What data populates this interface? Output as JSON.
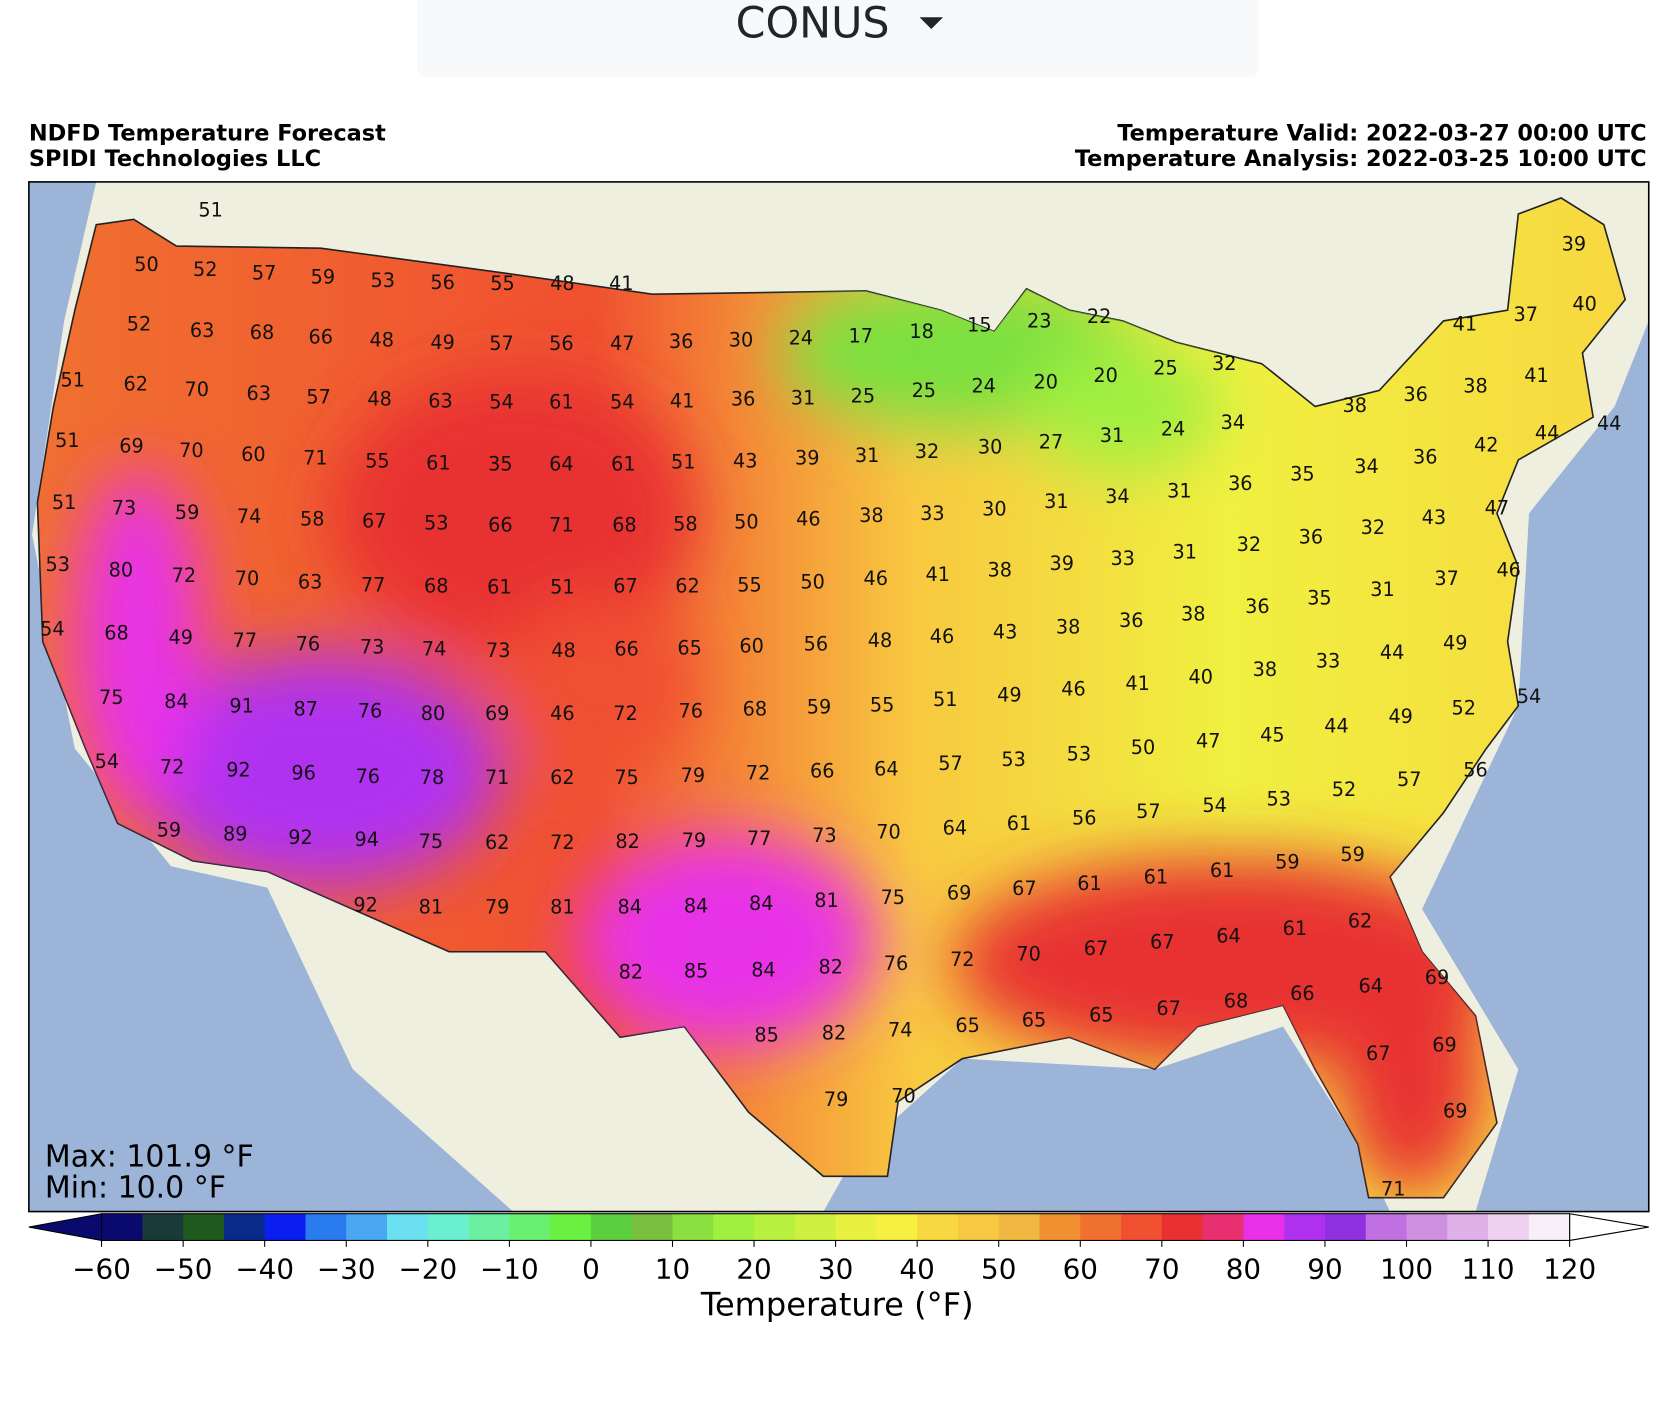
{
  "dropdown": {
    "label": "CONUS"
  },
  "map": {
    "title_left": [
      "NDFD Temperature Forecast",
      "SPIDI Technologies LLC"
    ],
    "title_right": [
      "Temperature Valid: 2022-03-27 00:00 UTC",
      "Temperature Analysis: 2022-03-25 10:00 UTC"
    ],
    "max_text": "Max: 101.9 °F",
    "min_text": "Min: 10.0 °F",
    "station_values": [
      51,
      50,
      52,
      57,
      59,
      53,
      56,
      55,
      48,
      41,
      52,
      63,
      68,
      66,
      48,
      49,
      57,
      56,
      47,
      36,
      30,
      24,
      17,
      18,
      15,
      23,
      22,
      39,
      41,
      37,
      40,
      51,
      62,
      70,
      63,
      57,
      48,
      63,
      54,
      61,
      54,
      41,
      36,
      31,
      25,
      25,
      24,
      20,
      20,
      25,
      32,
      38,
      36,
      38,
      41,
      51,
      69,
      70,
      60,
      71,
      55,
      61,
      35,
      64,
      61,
      51,
      43,
      39,
      31,
      32,
      30,
      27,
      31,
      24,
      34,
      34,
      36,
      42,
      44,
      44,
      51,
      73,
      59,
      74,
      58,
      67,
      53,
      66,
      71,
      68,
      58,
      50,
      46,
      38,
      33,
      30,
      31,
      34,
      31,
      36,
      35,
      36,
      32,
      43,
      47,
      53,
      80,
      72,
      70,
      63,
      77,
      68,
      61,
      51,
      67,
      62,
      55,
      50,
      46,
      41,
      38,
      39,
      33,
      31,
      32,
      35,
      31,
      37,
      46,
      54,
      68,
      49,
      77,
      76,
      73,
      74,
      73,
      48,
      66,
      65,
      60,
      56,
      48,
      46,
      43,
      38,
      36,
      38,
      36,
      33,
      44,
      49,
      75,
      84,
      91,
      87,
      76,
      80,
      69,
      46,
      72,
      76,
      68,
      59,
      55,
      51,
      49,
      46,
      41,
      40,
      38,
      52,
      54,
      54,
      72,
      92,
      96,
      76,
      78,
      71,
      62,
      75,
      79,
      72,
      66,
      64,
      57,
      53,
      53,
      50,
      47,
      45,
      44,
      49,
      59,
      89,
      92,
      94,
      75,
      62,
      72,
      82,
      79,
      77,
      73,
      70,
      64,
      61,
      56,
      57,
      54,
      53,
      52,
      57,
      56,
      92,
      81,
      79,
      81,
      84,
      84,
      84,
      81,
      75,
      69,
      67,
      61,
      61,
      61,
      59,
      59,
      82,
      85,
      84,
      82,
      76,
      72,
      70,
      67,
      67,
      64,
      61,
      62,
      69,
      85,
      82,
      74,
      65,
      65,
      65,
      67,
      68,
      66,
      64,
      69,
      79,
      70,
      67,
      69,
      71
    ],
    "colorbar": {
      "label": "Temperature (°F)",
      "xlim": [
        -60,
        120
      ],
      "bounds": [
        -60,
        -55,
        -50,
        -45,
        -40,
        -35,
        -30,
        -25,
        -20,
        -15,
        -10,
        -5,
        0,
        5,
        10,
        15,
        20,
        25,
        30,
        35,
        40,
        45,
        50,
        55,
        60,
        65,
        70,
        75,
        80,
        85,
        90,
        95,
        100,
        105,
        110,
        115,
        120
      ],
      "colors": [
        "#0a0a6e",
        "#1a3a3a",
        "#1e5a1e",
        "#0a2a8a",
        "#0a1ef0",
        "#2a7af0",
        "#4aa8f0",
        "#6ae0f0",
        "#6af0d0",
        "#6af0a0",
        "#6af070",
        "#6af040",
        "#5ad040",
        "#7ac040",
        "#8ae040",
        "#a0f040",
        "#b8f040",
        "#d0f040",
        "#e8f040",
        "#f8f040",
        "#f8d840",
        "#f8c840",
        "#f0b840",
        "#f09030",
        "#f07030",
        "#f05030",
        "#e83030",
        "#e83070",
        "#e830e8",
        "#b030f0",
        "#9030e0",
        "#c070e0",
        "#d090e0",
        "#e0b0e8",
        "#f0d0f0",
        "#f8f0f8"
      ],
      "under_color": "#0a0a6e",
      "over_color": "#ffffff",
      "xticks": [
        {
          "value": -60,
          "label": "−60"
        },
        {
          "value": -50,
          "label": "−50"
        },
        {
          "value": -40,
          "label": "−40"
        },
        {
          "value": -30,
          "label": "−30"
        },
        {
          "value": -20,
          "label": "−20"
        },
        {
          "value": -10,
          "label": "−10"
        },
        0,
        10,
        20,
        30,
        40,
        50,
        60,
        70,
        80,
        90,
        100,
        110,
        120
      ]
    }
  }
}
